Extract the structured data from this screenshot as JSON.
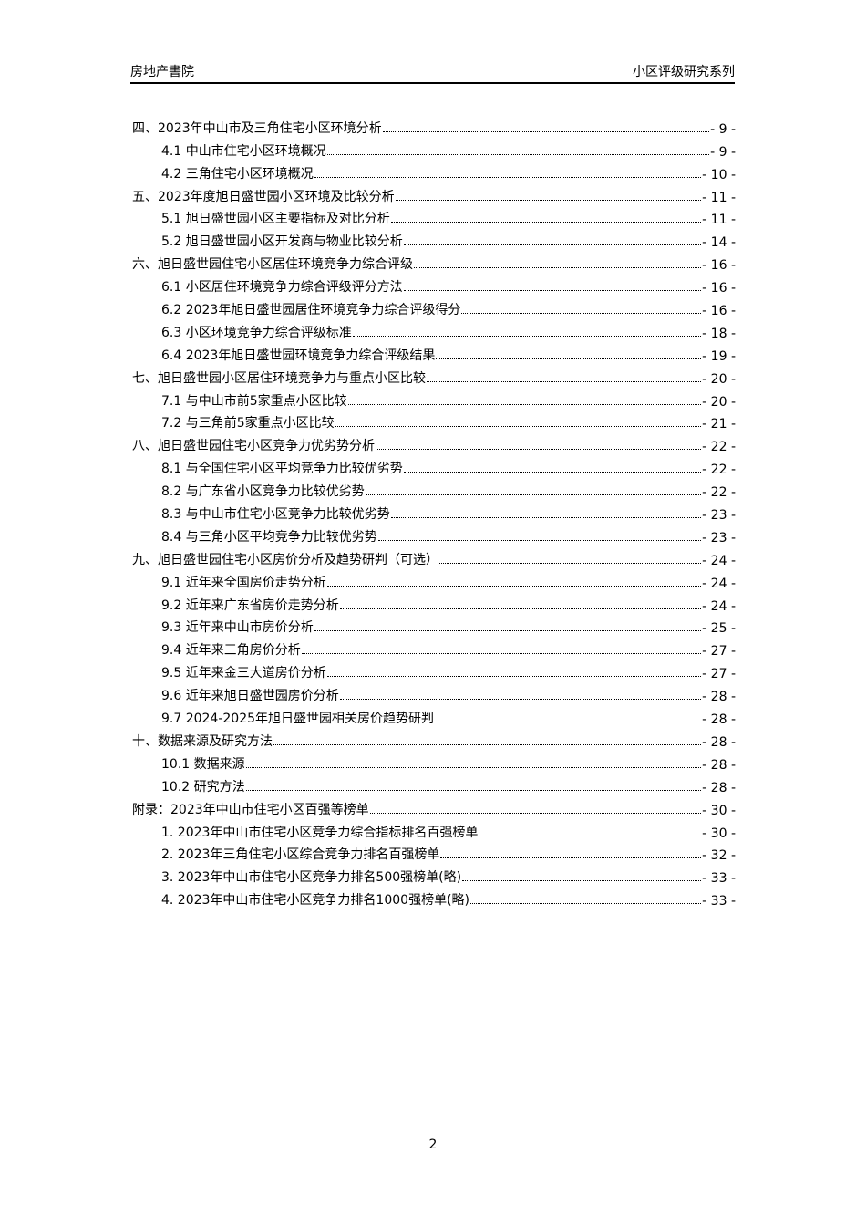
{
  "header": {
    "left": "房地产書院",
    "right": "小区评级研究系列"
  },
  "toc": [
    {
      "level": 1,
      "title": "四、2023年中山市及三角住宅小区环境分析",
      "page": "- 9 -"
    },
    {
      "level": 2,
      "title": "4.1 中山市住宅小区环境概况",
      "page": "- 9 -"
    },
    {
      "level": 2,
      "title": "4.2 三角住宅小区环境概况",
      "page": "- 10 -"
    },
    {
      "level": 1,
      "title": "五、2023年度旭日盛世园小区环境及比较分析",
      "page": "- 11 -"
    },
    {
      "level": 2,
      "title": "5.1 旭日盛世园小区主要指标及对比分析",
      "page": "- 11 -"
    },
    {
      "level": 2,
      "title": "5.2 旭日盛世园小区开发商与物业比较分析",
      "page": "- 14 -"
    },
    {
      "level": 1,
      "title": "六、旭日盛世园住宅小区居住环境竞争力综合评级",
      "page": "- 16 -"
    },
    {
      "level": 2,
      "title": "6.1 小区居住环境竞争力综合评级评分方法",
      "page": "- 16 -"
    },
    {
      "level": 2,
      "title": "6.2 2023年旭日盛世园居住环境竞争力综合评级得分",
      "page": "- 16 -"
    },
    {
      "level": 2,
      "title": "6.3 小区环境竞争力综合评级标准",
      "page": "- 18 -"
    },
    {
      "level": 2,
      "title": "6.4 2023年旭日盛世园环境竞争力综合评级结果",
      "page": "- 19 -"
    },
    {
      "level": 1,
      "title": "七、旭日盛世园小区居住环境竞争力与重点小区比较",
      "page": "- 20 -"
    },
    {
      "level": 2,
      "title": "7.1 与中山市前5家重点小区比较",
      "page": "- 20 -"
    },
    {
      "level": 2,
      "title": "7.2 与三角前5家重点小区比较",
      "page": "- 21 -"
    },
    {
      "level": 1,
      "title": "八、旭日盛世园住宅小区竞争力优劣势分析",
      "page": "- 22 -"
    },
    {
      "level": 2,
      "title": "8.1 与全国住宅小区平均竞争力比较优劣势",
      "page": "- 22 -"
    },
    {
      "level": 2,
      "title": "8.2 与广东省小区竞争力比较优劣势",
      "page": "- 22 -"
    },
    {
      "level": 2,
      "title": "8.3 与中山市住宅小区竞争力比较优劣势",
      "page": "- 23 -"
    },
    {
      "level": 2,
      "title": "8.4 与三角小区平均竞争力比较优劣势",
      "page": "- 23 -"
    },
    {
      "level": 1,
      "title": "九、旭日盛世园住宅小区房价分析及趋势研判（可选）",
      "page": "- 24 -"
    },
    {
      "level": 2,
      "title": "9.1 近年来全国房价走势分析",
      "page": "- 24 -"
    },
    {
      "level": 2,
      "title": "9.2 近年来广东省房价走势分析",
      "page": "- 24 -"
    },
    {
      "level": 2,
      "title": "9.3 近年来中山市房价分析",
      "page": "- 25 -"
    },
    {
      "level": 2,
      "title": "9.4 近年来三角房价分析",
      "page": "- 27 -"
    },
    {
      "level": 2,
      "title": "9.5 近年来金三大道房价分析",
      "page": "- 27 -"
    },
    {
      "level": 2,
      "title": "9.6 近年来旭日盛世园房价分析",
      "page": "- 28 -"
    },
    {
      "level": 2,
      "title": "9.7 2024-2025年旭日盛世园相关房价趋势研判",
      "page": "- 28 -"
    },
    {
      "level": 1,
      "title": "十、数据来源及研究方法",
      "page": "- 28 -"
    },
    {
      "level": 2,
      "title": "10.1 数据来源",
      "page": "- 28 -"
    },
    {
      "level": 2,
      "title": "10.2 研究方法",
      "page": "- 28 -"
    },
    {
      "level": 1,
      "title": "附录：2023年中山市住宅小区百强等榜单",
      "page": "- 30 -"
    },
    {
      "level": 2,
      "title": "1. 2023年中山市住宅小区竞争力综合指标排名百强榜单",
      "page": "- 30 -"
    },
    {
      "level": 2,
      "title": "2. 2023年三角住宅小区综合竞争力排名百强榜单",
      "page": "- 32 -"
    },
    {
      "level": 2,
      "title": "3. 2023年中山市住宅小区竞争力排名500强榜单(略)",
      "page": "- 33 -"
    },
    {
      "level": 2,
      "title": "4. 2023年中山市住宅小区竞争力排名1000强榜单(略)",
      "page": "- 33 -"
    }
  ],
  "page_number": "2"
}
